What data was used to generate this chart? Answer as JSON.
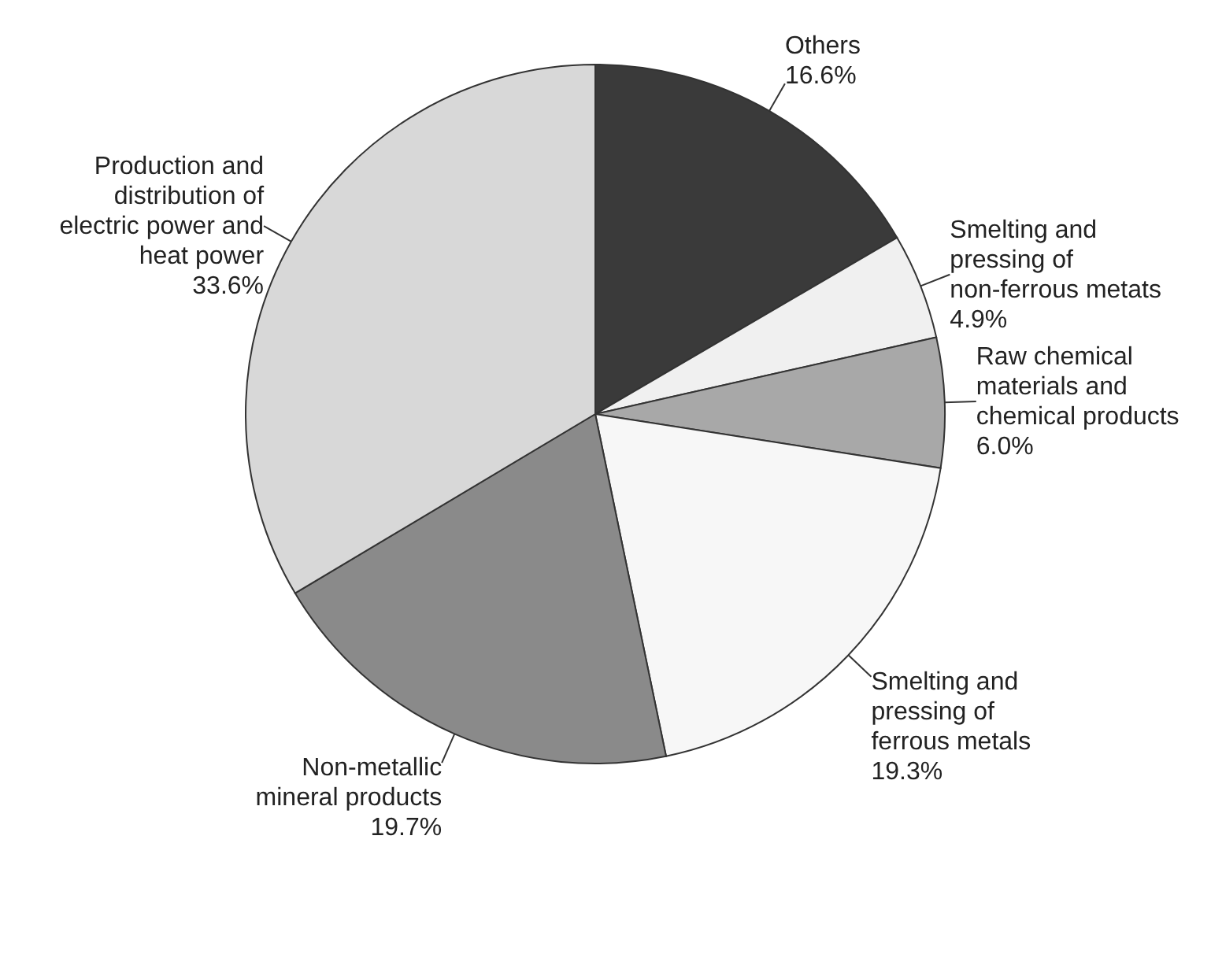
{
  "chart_data": {
    "type": "pie",
    "categories": [
      "Others",
      "Smelting and pressing of non-ferrous metats",
      "Raw chemical materials and chemical products",
      "Smelting and pressing of ferrous metals",
      "Non-metallic mineral products",
      "Production and distribution of electric power and heat power"
    ],
    "values": [
      16.6,
      4.9,
      6.0,
      19.3,
      19.7,
      33.6
    ],
    "value_labels": [
      "16.6%",
      "4.9%",
      "6.0%",
      "19.3%",
      "19.7%",
      "33.6%"
    ],
    "colors": [
      "#3a3a3a",
      "#f0f0f0",
      "#a8a8a8",
      "#f7f7f7",
      "#8a8a8a",
      "#d8d8d8"
    ],
    "legend": false
  }
}
